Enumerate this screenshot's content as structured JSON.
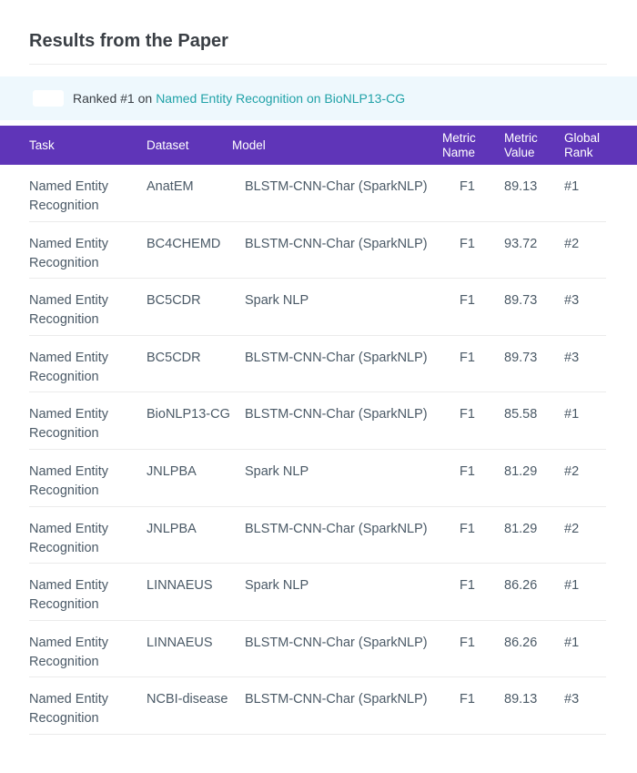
{
  "page": {
    "title": "Results from the Paper"
  },
  "ranked": {
    "prefix": "Ranked #1 on",
    "link": "Named Entity Recognition on BioNLP13-CG"
  },
  "table": {
    "headers": {
      "task": "Task",
      "dataset": "Dataset",
      "model": "Model",
      "metric_name": "Metric Name",
      "metric_value": "Metric Value",
      "global_rank": "Global Rank"
    },
    "rows": [
      {
        "task": "Named Entity Recognition",
        "dataset": "AnatEM",
        "model": "BLSTM-CNN-Char (SparkNLP)",
        "metric_name": "F1",
        "metric_value": "89.13",
        "rank": "#1"
      },
      {
        "task": "Named Entity Recognition",
        "dataset": "BC4CHEMD",
        "model": "BLSTM-CNN-Char (SparkNLP)",
        "metric_name": "F1",
        "metric_value": "93.72",
        "rank": "#2"
      },
      {
        "task": "Named Entity Recognition",
        "dataset": "BC5CDR",
        "model": "Spark NLP",
        "metric_name": "F1",
        "metric_value": "89.73",
        "rank": "#3"
      },
      {
        "task": "Named Entity Recognition",
        "dataset": "BC5CDR",
        "model": "BLSTM-CNN-Char (SparkNLP)",
        "metric_name": "F1",
        "metric_value": "89.73",
        "rank": "#3"
      },
      {
        "task": "Named Entity Recognition",
        "dataset": "BioNLP13-CG",
        "model": "BLSTM-CNN-Char (SparkNLP)",
        "metric_name": "F1",
        "metric_value": "85.58",
        "rank": "#1"
      },
      {
        "task": "Named Entity Recognition",
        "dataset": "JNLPBA",
        "model": "Spark NLP",
        "metric_name": "F1",
        "metric_value": "81.29",
        "rank": "#2"
      },
      {
        "task": "Named Entity Recognition",
        "dataset": "JNLPBA",
        "model": "BLSTM-CNN-Char (SparkNLP)",
        "metric_name": "F1",
        "metric_value": "81.29",
        "rank": "#2"
      },
      {
        "task": "Named Entity Recognition",
        "dataset": "LINNAEUS",
        "model": "Spark NLP",
        "metric_name": "F1",
        "metric_value": "86.26",
        "rank": "#1"
      },
      {
        "task": "Named Entity Recognition",
        "dataset": "LINNAEUS",
        "model": "BLSTM-CNN-Char (SparkNLP)",
        "metric_name": "F1",
        "metric_value": "86.26",
        "rank": "#1"
      },
      {
        "task": "Named Entity Recognition",
        "dataset": "NCBI-disease",
        "model": "BLSTM-CNN-Char (SparkNLP)",
        "metric_name": "F1",
        "metric_value": "89.13",
        "rank": "#3"
      }
    ]
  }
}
